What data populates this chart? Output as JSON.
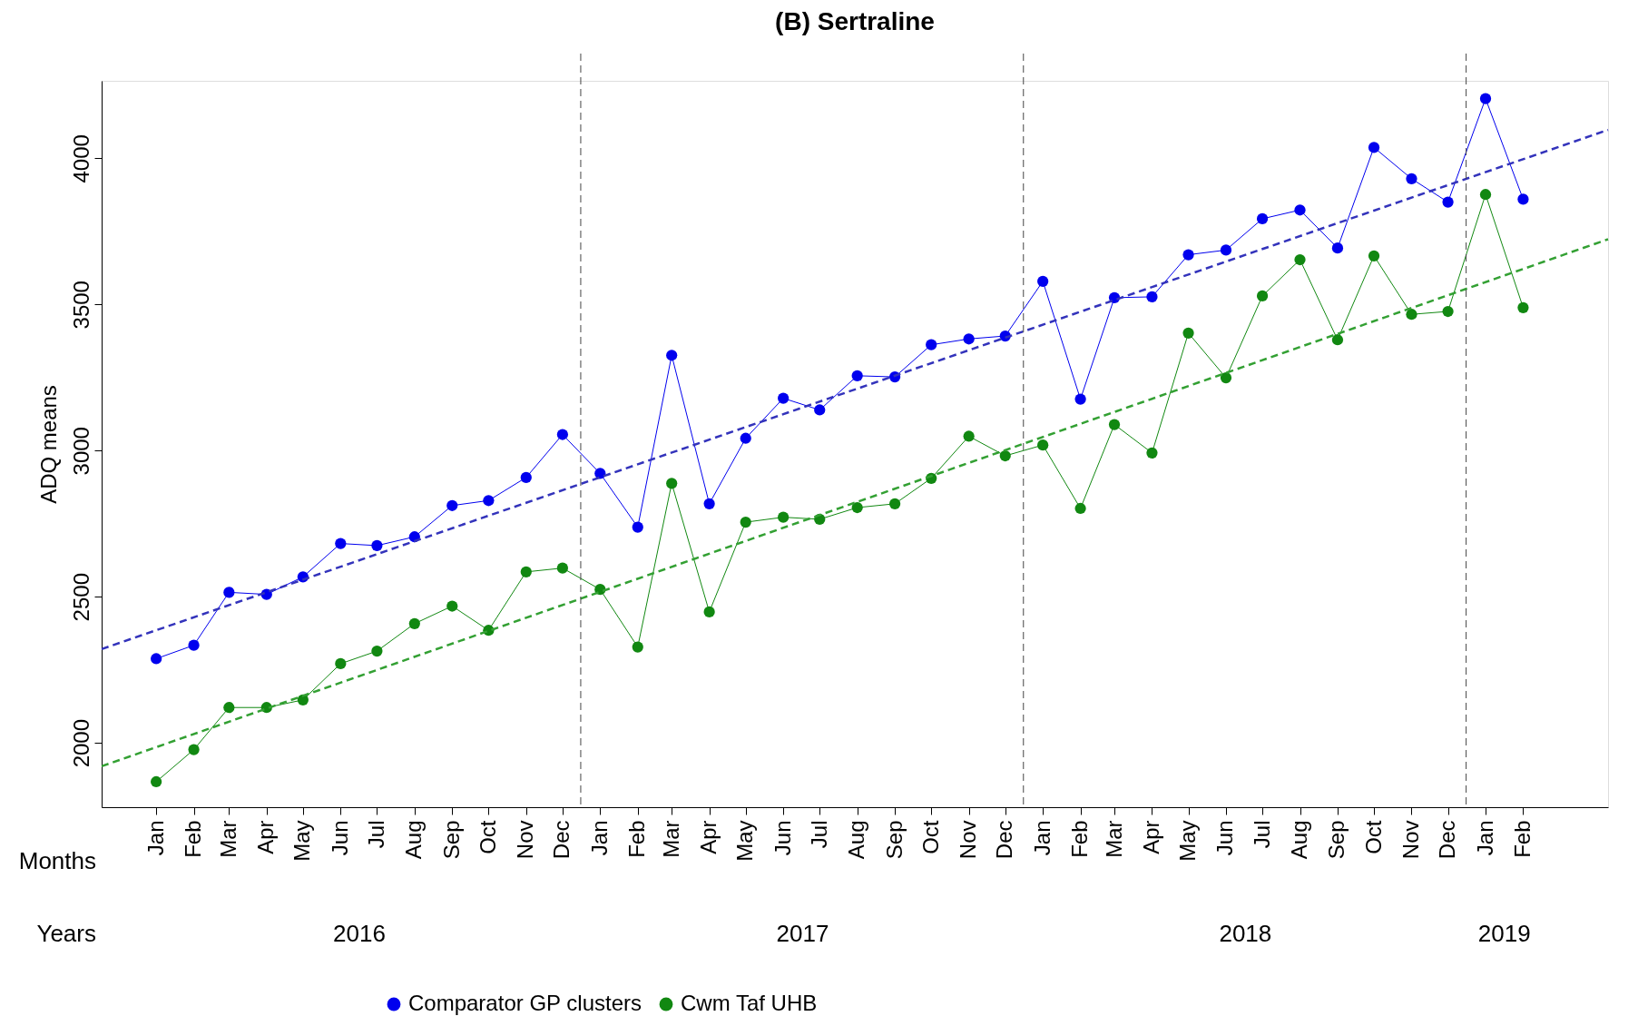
{
  "chart_data": {
    "type": "line",
    "title": "(B) Sertraline",
    "xlabel": "Months",
    "ylabel": "ADQ means",
    "annotations": [
      "Years",
      "2016",
      "2017",
      "2018",
      "2019"
    ],
    "x": [
      "2016-01",
      "2016-02",
      "2016-03",
      "2016-04",
      "2016-05",
      "2016-06",
      "2016-07",
      "2016-08",
      "2016-09",
      "2016-10",
      "2016-11",
      "2016-12",
      "2017-01",
      "2017-02",
      "2017-03",
      "2017-04",
      "2017-05",
      "2017-06",
      "2017-07",
      "2017-08",
      "2017-09",
      "2017-10",
      "2017-11",
      "2017-12",
      "2018-01",
      "2018-02",
      "2018-03",
      "2018-04",
      "2018-05",
      "2018-06",
      "2018-07",
      "2018-08",
      "2018-09",
      "2018-10",
      "2018-11",
      "2018-12",
      "2019-01",
      "2019-02"
    ],
    "xlim": [
      "2015-11-17",
      "2019-04-12"
    ],
    "xticks": [
      {
        "value": "2016-01",
        "label": "Jan"
      },
      {
        "value": "2016-02",
        "label": "Feb"
      },
      {
        "value": "2016-03",
        "label": "Mar"
      },
      {
        "value": "2016-04",
        "label": "Apr"
      },
      {
        "value": "2016-05",
        "label": "May"
      },
      {
        "value": "2016-06",
        "label": "Jun"
      },
      {
        "value": "2016-07",
        "label": "Jul"
      },
      {
        "value": "2016-08",
        "label": "Aug"
      },
      {
        "value": "2016-09",
        "label": "Sep"
      },
      {
        "value": "2016-10",
        "label": "Oct"
      },
      {
        "value": "2016-11",
        "label": "Nov"
      },
      {
        "value": "2016-12",
        "label": "Dec"
      },
      {
        "value": "2017-01",
        "label": "Jan"
      },
      {
        "value": "2017-02",
        "label": "Feb"
      },
      {
        "value": "2017-03",
        "label": "Mar"
      },
      {
        "value": "2017-04",
        "label": "Apr"
      },
      {
        "value": "2017-05",
        "label": "May"
      },
      {
        "value": "2017-06",
        "label": "Jun"
      },
      {
        "value": "2017-07",
        "label": "Jul"
      },
      {
        "value": "2017-08",
        "label": "Aug"
      },
      {
        "value": "2017-09",
        "label": "Sep"
      },
      {
        "value": "2017-10",
        "label": "Oct"
      },
      {
        "value": "2017-11",
        "label": "Nov"
      },
      {
        "value": "2017-12",
        "label": "Dec"
      },
      {
        "value": "2018-01",
        "label": "Jan"
      },
      {
        "value": "2018-02",
        "label": "Feb"
      },
      {
        "value": "2018-03",
        "label": "Mar"
      },
      {
        "value": "2018-04",
        "label": "Apr"
      },
      {
        "value": "2018-05",
        "label": "May"
      },
      {
        "value": "2018-06",
        "label": "Jun"
      },
      {
        "value": "2018-07",
        "label": "Jul"
      },
      {
        "value": "2018-08",
        "label": "Aug"
      },
      {
        "value": "2018-09",
        "label": "Sep"
      },
      {
        "value": "2018-10",
        "label": "Oct"
      },
      {
        "value": "2018-11",
        "label": "Nov"
      },
      {
        "value": "2018-12",
        "label": "Dec"
      },
      {
        "value": "2019-01",
        "label": "Jan"
      },
      {
        "value": "2019-02",
        "label": "Feb"
      }
    ],
    "ylim": [
      1780,
      4265
    ],
    "yticks": [
      2000,
      2500,
      3000,
      3500,
      4000
    ],
    "grid": false,
    "legend": "bottom",
    "marker": "circle",
    "ref_lines": [
      {
        "axis": "x",
        "value": "2016-12-16",
        "line_style": "dashed",
        "color": "#444444"
      },
      {
        "axis": "x",
        "value": "2017-12-16",
        "line_style": "dashed",
        "color": "#444444"
      },
      {
        "axis": "x",
        "value": "2018-12-16",
        "line_style": "dashed",
        "color": "#444444"
      }
    ],
    "series": [
      {
        "name": "Comparator GP clusters",
        "color": "#0000ee",
        "values": [
          2288,
          2334,
          2515,
          2508,
          2568,
          2682,
          2675,
          2705,
          2812,
          2829,
          2908,
          3055,
          2922,
          2738,
          3326,
          2818,
          3042,
          3179,
          3139,
          3256,
          3252,
          3362,
          3382,
          3392,
          3579,
          3176,
          3523,
          3526,
          3670,
          3686,
          3793,
          3823,
          3693,
          4037,
          3930,
          3850,
          4204,
          3860
        ]
      },
      {
        "name": "Cwm Taf UHB",
        "color": "#118811",
        "values": [
          1867,
          1977,
          2121,
          2121,
          2147,
          2271,
          2314,
          2408,
          2468,
          2385,
          2585,
          2598,
          2525,
          2328,
          2888,
          2448,
          2755,
          2772,
          2765,
          2805,
          2818,
          2905,
          3049,
          2982,
          3019,
          2802,
          3089,
          2992,
          3402,
          3249,
          3529,
          3653,
          3379,
          3666,
          3466,
          3476,
          3876,
          3489
        ]
      },
      {
        "type": "line",
        "color": "#3333bb",
        "line_style": "dashed",
        "marker": "none",
        "x": [
          "2015-11-17",
          "2019-04-12"
        ],
        "values": [
          2321,
          4097
        ]
      },
      {
        "type": "line",
        "color": "#33a033",
        "line_style": "dashed",
        "marker": "none",
        "x": [
          "2015-11-17",
          "2019-04-12"
        ],
        "values": [
          1920,
          3723
        ]
      }
    ]
  }
}
